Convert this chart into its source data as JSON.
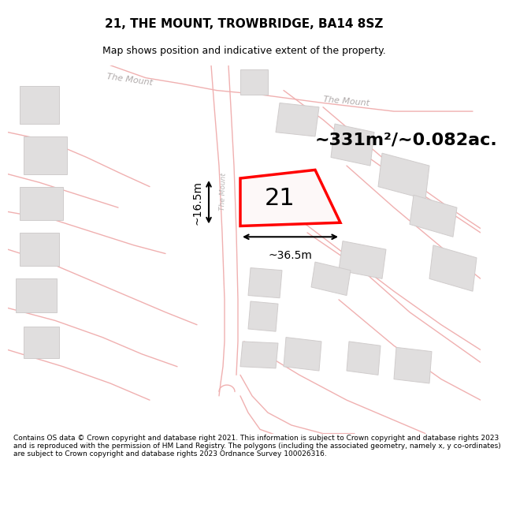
{
  "title": "21, THE MOUNT, TROWBRIDGE, BA14 8SZ",
  "subtitle": "Map shows position and indicative extent of the property.",
  "footer": "Contains OS data © Crown copyright and database right 2021. This information is subject to Crown copyright and database rights 2023 and is reproduced with the permission of HM Land Registry. The polygons (including the associated geometry, namely x, y co-ordinates) are subject to Crown copyright and database rights 2023 Ordnance Survey 100026316.",
  "area_label": "~331m²/~0.082ac.",
  "number_label": "21",
  "width_label": "~36.5m",
  "height_label": "~16.5m",
  "road_label_tl": "The Mount",
  "road_label_tr": "The Mount",
  "road_label_vert": "The Mount",
  "map_bg": "#f7f5f5",
  "road_line_color": "#f0b0b0",
  "building_fill": "#e0dede",
  "building_edge": "#d0cccc",
  "plot_edge": "#ff0000",
  "plot_fill": "#fdf8f8",
  "title_fontsize": 11,
  "subtitle_fontsize": 9,
  "footer_fontsize": 6.5,
  "area_fontsize": 16,
  "number_fontsize": 22,
  "dim_fontsize": 10,
  "road_label_fontsize": 8
}
